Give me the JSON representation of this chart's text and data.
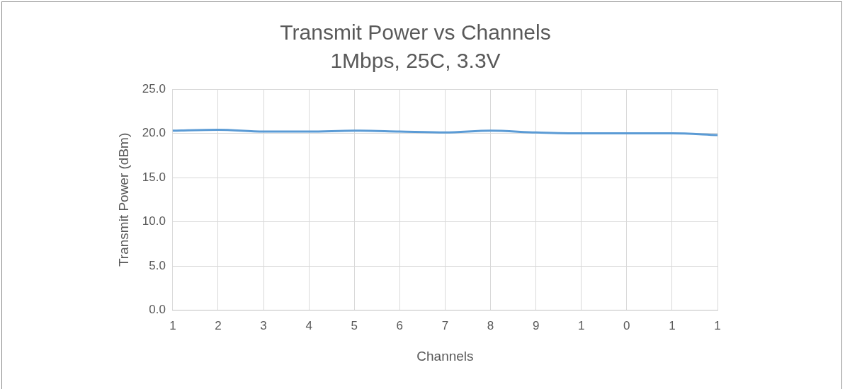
{
  "chart_data": {
    "type": "line",
    "title": "Transmit Power vs Channels",
    "subtitle": "1Mbps, 25C, 3.3V",
    "xlabel": "Channels",
    "ylabel": "Transmit Power (dBm)",
    "categories": [
      "1",
      "2",
      "3",
      "4",
      "5",
      "6",
      "7",
      "8",
      "9",
      "1",
      "0",
      "1",
      "1"
    ],
    "series": [
      {
        "color": "#5b9bd5",
        "values": [
          20.3,
          20.4,
          20.2,
          20.2,
          20.3,
          20.2,
          20.1,
          20.3,
          20.1,
          20.0,
          20.0,
          20.0,
          19.8
        ]
      }
    ],
    "ylim": [
      0,
      25
    ],
    "yticks": [
      {
        "value": 0,
        "label": "0.0"
      },
      {
        "value": 5,
        "label": "5.0"
      },
      {
        "value": 10,
        "label": "10.0"
      },
      {
        "value": 15,
        "label": "15.0"
      },
      {
        "value": 20,
        "label": "20.0"
      },
      {
        "value": 25,
        "label": "25.0"
      }
    ],
    "grid": true,
    "legend": false,
    "marker": "none",
    "line_style": "solid"
  }
}
